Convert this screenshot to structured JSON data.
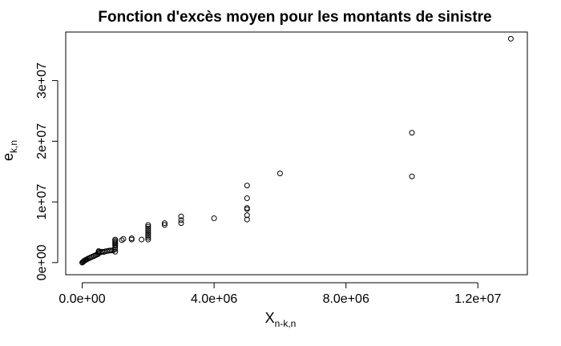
{
  "chart_data": {
    "type": "scatter",
    "title": "Fonction d'excès moyen pour les montants de sinistre",
    "xlabel": "X",
    "xlabel_sub": "n-k,n",
    "ylabel": "e",
    "ylabel_sub": "k,n",
    "xlim": [
      -500000,
      13500000
    ],
    "ylim": [
      -2000000,
      38000000
    ],
    "grid": false,
    "legend": "none",
    "point_color": "#000000",
    "x_ticks": [
      {
        "value": 0,
        "label": "0.0e+00"
      },
      {
        "value": 4000000,
        "label": "4.0e+06"
      },
      {
        "value": 8000000,
        "label": "8.0e+06"
      },
      {
        "value": 12000000,
        "label": "1.2e+07"
      }
    ],
    "y_ticks": [
      {
        "value": 0,
        "label": "0e+00"
      },
      {
        "value": 10000000,
        "label": "1e+07"
      },
      {
        "value": 20000000,
        "label": "2e+07"
      },
      {
        "value": 30000000,
        "label": "3e+07"
      }
    ],
    "x": [
      0,
      20000,
      40000,
      60000,
      80000,
      100000,
      130000,
      160000,
      200000,
      240000,
      280000,
      320000,
      360000,
      400000,
      440000,
      480000,
      500000,
      500000,
      500000,
      550000,
      600000,
      650000,
      700000,
      750000,
      800000,
      850000,
      900000,
      950000,
      1000000,
      1000000,
      1000000,
      1000000,
      1000000,
      1000000,
      1000000,
      1000000,
      1000000,
      1200000,
      1250000,
      1500000,
      1500000,
      1800000,
      2000000,
      2000000,
      2000000,
      2000000,
      2000000,
      2000000,
      2000000,
      2000000,
      2000000,
      2500000,
      2500000,
      3000000,
      3000000,
      3000000,
      4000000,
      5000000,
      5000000,
      5000000,
      5000000,
      5000000,
      5000000,
      6000000,
      10000000,
      10000000,
      13000000
    ],
    "y": [
      0,
      100000,
      200000,
      280000,
      350000,
      420000,
      500000,
      600000,
      700000,
      800000,
      900000,
      1000000,
      1100000,
      1200000,
      1300000,
      1400000,
      1600000,
      1800000,
      1900000,
      1700000,
      1800000,
      1750000,
      1850000,
      1900000,
      1950000,
      2000000,
      2000000,
      2050000,
      1800000,
      2200000,
      2500000,
      2800000,
      3000000,
      3200000,
      3400000,
      3600000,
      3800000,
      3700000,
      3900000,
      3800000,
      4000000,
      3800000,
      3800000,
      4100000,
      4400000,
      4700000,
      5000000,
      5300000,
      5600000,
      5900000,
      6200000,
      6200000,
      6500000,
      6500000,
      7000000,
      7600000,
      7300000,
      7100000,
      7800000,
      8800000,
      9000000,
      10600000,
      12700000,
      14700000,
      14200000,
      21400000,
      36900000
    ]
  }
}
